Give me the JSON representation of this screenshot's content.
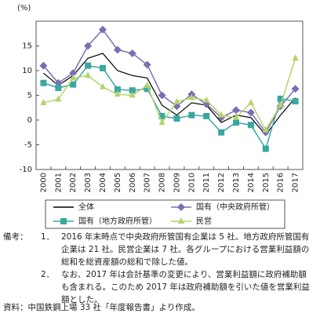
{
  "chart_data": {
    "type": "line",
    "y_label": "(%)",
    "categories": [
      "2000",
      "2001",
      "2002",
      "2003",
      "2004",
      "2005",
      "2006",
      "2007",
      "2008",
      "2009",
      "2010",
      "2011",
      "2012",
      "2013",
      "2014",
      "2015",
      "2016",
      "2017"
    ],
    "series": [
      {
        "name": "全体",
        "color": "#000000",
        "marker": "none",
        "values": [
          9.5,
          7,
          9,
          12.5,
          13.5,
          10,
          9,
          8.5,
          3,
          1,
          3.5,
          3,
          -0.5,
          1,
          0.5,
          -3,
          1,
          4.5
        ]
      },
      {
        "name": "国有（中央政府所管）",
        "color": "#7b6fb3",
        "marker": "diamond",
        "values": [
          11,
          7.5,
          9.5,
          15,
          18.3,
          14.2,
          13.5,
          11.2,
          5,
          2.8,
          5.2,
          3.2,
          0.5,
          2,
          1.5,
          -2.5,
          2.8,
          6.3
        ]
      },
      {
        "name": "国有（地方政府所管）",
        "color": "#3aa7a0",
        "marker": "square",
        "values": [
          7.5,
          6.5,
          7.2,
          11,
          10.5,
          6.2,
          6,
          6.3,
          0.8,
          0.3,
          1,
          0.8,
          -2.5,
          -0.5,
          -1,
          -5.8,
          4.3,
          3.8
        ]
      },
      {
        "name": "民営",
        "color": "#b5d36a",
        "marker": "triangle",
        "values": [
          3.5,
          4.2,
          8.5,
          9,
          6.7,
          5.2,
          5,
          7,
          -0.5,
          3.7,
          4.5,
          4,
          1,
          0.5,
          3.5,
          -2,
          3,
          12.5
        ]
      }
    ],
    "ylim": [
      -10,
      20
    ],
    "yticks": [
      -10,
      -5,
      0,
      5,
      10,
      15
    ],
    "grid": false
  },
  "notes": {
    "label": "備考：",
    "items": [
      {
        "number": "1．",
        "text": "2016 年末時点で中央政府所管国有企業は 5 社。地方政府所管国有企業は 21 社。民営企業は 7 社。各グループにおける営業利益額の総和を総資産額の総和で除した値。"
      },
      {
        "number": "2．",
        "text": "なお、2017 年は会計基準の変更により、営業利益額に政府補助額も含まれる。このため 2017 年は政府補助額を引いた値を営業利益額とした。"
      }
    ],
    "source": "資料：中国鉄鋼上場 33 社「年度報告書」より作成。"
  }
}
